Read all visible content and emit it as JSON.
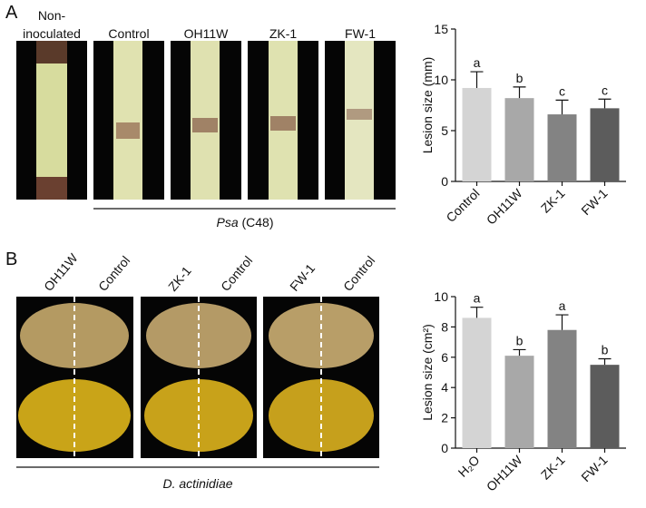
{
  "figure": {
    "panel_labels": [
      "A",
      "B"
    ],
    "panel_a_photo_labels": [
      [
        "Non-",
        "inoculated"
      ],
      "Control",
      "OH11W",
      "ZK-1",
      "FW-1"
    ],
    "panel_a_group_label": {
      "italic": "Psa",
      "rest": " (C48)"
    },
    "panel_b_photo_labels": [
      "OH11W",
      "Control",
      "ZK-1",
      "Control",
      "FW-1",
      "Control"
    ],
    "panel_b_group_label": "D. actinidiae"
  },
  "chart_data": [
    {
      "type": "bar",
      "y_label": "Lesion size (mm)",
      "categories": [
        "Control",
        "OH11W",
        "ZK-1",
        "FW-1"
      ],
      "values": [
        9.2,
        8.2,
        6.6,
        7.2
      ],
      "errors": [
        1.6,
        1.1,
        1.4,
        0.9
      ],
      "annotations": [
        "a",
        "b",
        "c",
        "c"
      ],
      "colors": [
        "#d4d4d4",
        "#a8a8a8",
        "#838383",
        "#5c5c5c"
      ],
      "ylim": [
        0,
        15
      ],
      "yticks": [
        0,
        5,
        10,
        15
      ]
    },
    {
      "type": "bar",
      "y_label": "Lesion size (cm²)",
      "categories": [
        "H₂O",
        "OH11W",
        "ZK-1",
        "FW-1"
      ],
      "values": [
        8.6,
        6.1,
        7.8,
        5.5
      ],
      "errors": [
        0.7,
        0.4,
        1.0,
        0.4
      ],
      "annotations": [
        "a",
        "b",
        "a",
        "b"
      ],
      "colors": [
        "#d4d4d4",
        "#a8a8a8",
        "#838383",
        "#5c5c5c"
      ],
      "ylim": [
        0,
        10
      ],
      "yticks": [
        0,
        2,
        4,
        6,
        8,
        10
      ]
    }
  ]
}
